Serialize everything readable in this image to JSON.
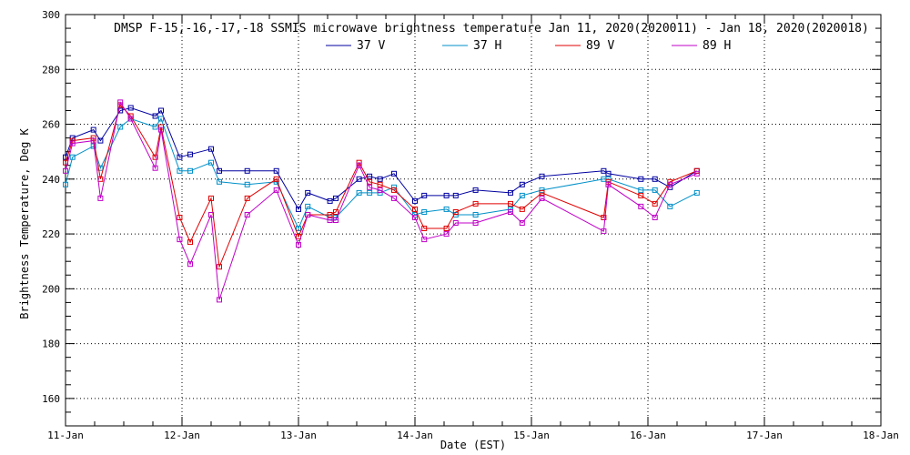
{
  "chart_data": {
    "type": "line",
    "title": "DMSP F-15,-16,-17,-18 SSMIS microwave brightness temperature Jan 11, 2020(2020011) - Jan 18, 2020(2020018)",
    "xlabel": "Date (EST)",
    "ylabel": "Brightness Temperature, Deg K",
    "xlim": [
      0,
      7
    ],
    "ylim": [
      150,
      300
    ],
    "x_ticks": [
      0,
      1,
      2,
      3,
      4,
      5,
      6,
      7
    ],
    "x_tick_labels": [
      "11-Jan",
      "12-Jan",
      "13-Jan",
      "14-Jan",
      "15-Jan",
      "16-Jan",
      "17-Jan",
      "18-Jan"
    ],
    "y_ticks": [
      160,
      180,
      200,
      220,
      240,
      260,
      280,
      300
    ],
    "grid": true,
    "legend_position": "top-center",
    "x_unit_note": "days since 11-Jan",
    "series": [
      {
        "name": "37 V",
        "color": "#0000a0",
        "x": [
          0,
          0.06,
          0.24,
          0.3,
          0.47,
          0.56,
          0.77,
          0.82,
          0.98,
          1.07,
          1.25,
          1.32,
          1.56,
          1.81,
          2.0,
          2.08,
          2.27,
          2.32,
          2.52,
          2.61,
          2.7,
          2.82,
          3.0,
          3.08,
          3.27,
          3.35,
          3.52,
          3.82,
          3.92,
          4.09,
          4.62,
          4.66,
          4.94,
          5.06,
          5.19,
          5.42
        ],
        "y": [
          248,
          255,
          258,
          254,
          265,
          266,
          263,
          265,
          248,
          249,
          251,
          243,
          243,
          243,
          229,
          235,
          232,
          233,
          240,
          241,
          240,
          242,
          232,
          234,
          234,
          234,
          236,
          235,
          238,
          241,
          243,
          242,
          240,
          240,
          237,
          243
        ]
      },
      {
        "name": "37 H",
        "color": "#0090c8",
        "x": [
          0,
          0.06,
          0.24,
          0.3,
          0.47,
          0.56,
          0.77,
          0.82,
          0.98,
          1.07,
          1.25,
          1.32,
          1.56,
          1.81,
          2.0,
          2.08,
          2.27,
          2.32,
          2.52,
          2.61,
          2.7,
          2.82,
          3.0,
          3.08,
          3.27,
          3.35,
          3.52,
          3.82,
          3.92,
          4.09,
          4.62,
          4.66,
          4.94,
          5.06,
          5.19,
          5.42
        ],
        "y": [
          238,
          248,
          252,
          244,
          259,
          262,
          259,
          262,
          243,
          243,
          246,
          239,
          238,
          239,
          222,
          230,
          226,
          226,
          235,
          235,
          235,
          237,
          227,
          228,
          229,
          227,
          227,
          229,
          234,
          236,
          240,
          240,
          236,
          236,
          230,
          235
        ]
      },
      {
        "name": "89 V",
        "color": "#e00000",
        "x": [
          0,
          0.06,
          0.24,
          0.3,
          0.47,
          0.56,
          0.77,
          0.82,
          0.98,
          1.07,
          1.25,
          1.32,
          1.56,
          1.81,
          2.0,
          2.08,
          2.27,
          2.32,
          2.52,
          2.61,
          2.7,
          2.82,
          3.0,
          3.08,
          3.27,
          3.35,
          3.52,
          3.82,
          3.92,
          4.09,
          4.62,
          4.66,
          4.94,
          5.06,
          5.19,
          5.42
        ],
        "y": [
          246,
          254,
          255,
          240,
          267,
          263,
          248,
          259,
          226,
          217,
          233,
          208,
          233,
          240,
          219,
          227,
          227,
          228,
          246,
          239,
          238,
          236,
          229,
          222,
          222,
          228,
          231,
          231,
          229,
          235,
          226,
          239,
          234,
          231,
          239,
          243
        ]
      },
      {
        "name": "89 H",
        "color": "#c000c8",
        "x": [
          0,
          0.06,
          0.24,
          0.3,
          0.47,
          0.56,
          0.77,
          0.82,
          0.98,
          1.07,
          1.25,
          1.32,
          1.56,
          1.81,
          2.0,
          2.08,
          2.27,
          2.32,
          2.52,
          2.61,
          2.7,
          2.82,
          3.0,
          3.08,
          3.27,
          3.35,
          3.52,
          3.82,
          3.92,
          4.09,
          4.62,
          4.66,
          4.94,
          5.06,
          5.19,
          5.42
        ],
        "y": [
          243,
          253,
          254,
          233,
          268,
          262,
          244,
          258,
          218,
          209,
          227,
          196,
          227,
          236,
          216,
          227,
          225,
          225,
          245,
          237,
          236,
          233,
          226,
          218,
          220,
          224,
          224,
          228,
          224,
          233,
          221,
          238,
          230,
          226,
          238,
          242
        ]
      }
    ]
  }
}
